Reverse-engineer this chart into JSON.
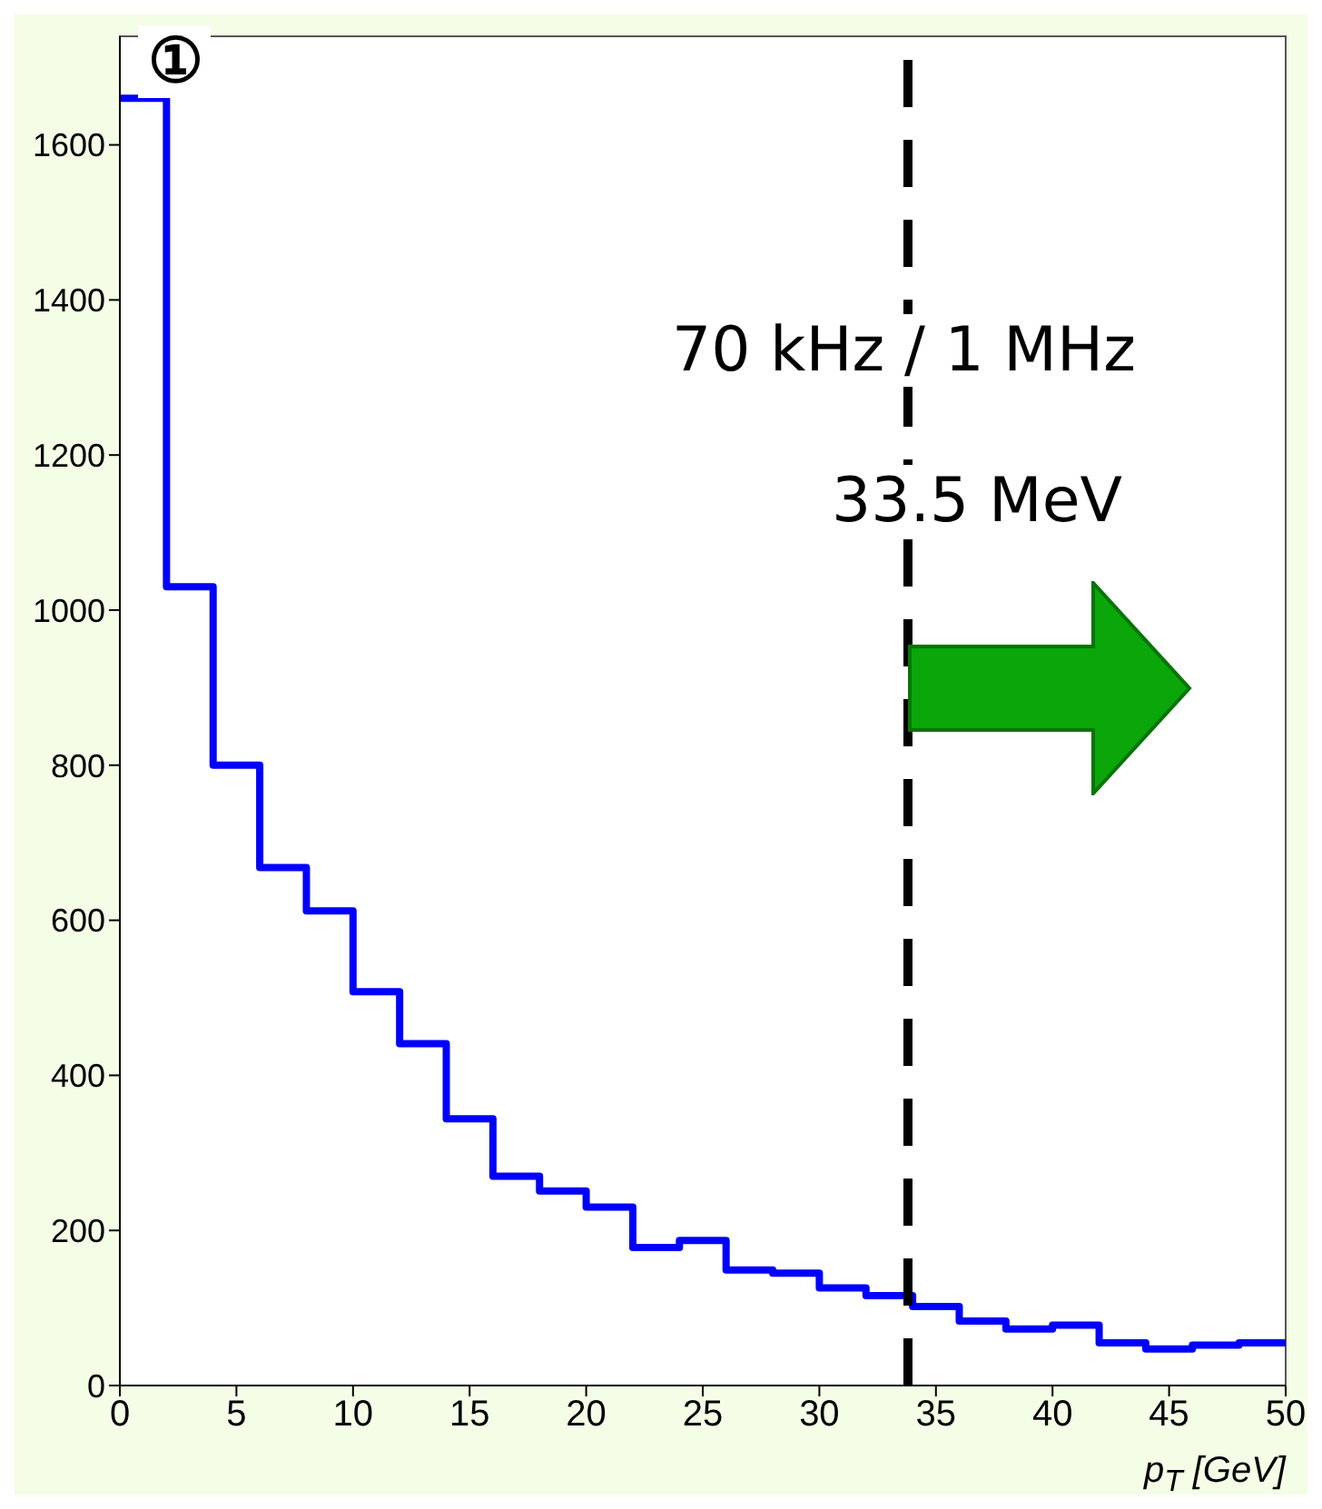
{
  "chart_data": {
    "type": "histogram",
    "xlabel": "p$_{T}$ [GeV]",
    "bins": [
      0,
      2,
      4,
      6,
      8,
      10,
      12,
      14,
      16,
      18,
      20,
      22,
      24,
      26,
      28,
      30,
      32,
      34,
      36,
      38,
      40,
      42,
      44,
      46,
      48,
      50
    ],
    "values": [
      1660,
      1030,
      800,
      668,
      612,
      508,
      441,
      344,
      270,
      251,
      230,
      178,
      187,
      149,
      145,
      126,
      116,
      102,
      83,
      73,
      78,
      55,
      47,
      52,
      55
    ],
    "color": "#0000ff",
    "xlim": [
      0,
      50
    ],
    "xticks": [
      0,
      5,
      10,
      15,
      20,
      25,
      30,
      35,
      40,
      45,
      50
    ],
    "ylim": [
      0,
      1740
    ],
    "yticks": [
      0,
      200,
      400,
      600,
      800,
      1000,
      1200,
      1400,
      1600
    ],
    "ref_lines": [
      {
        "axis": "x",
        "value": 33.8,
        "color": "#000000",
        "line_style": "dashed"
      }
    ],
    "annotations": [
      "①",
      "70 kHz / 1 MHz",
      "33.5 MeV"
    ]
  }
}
